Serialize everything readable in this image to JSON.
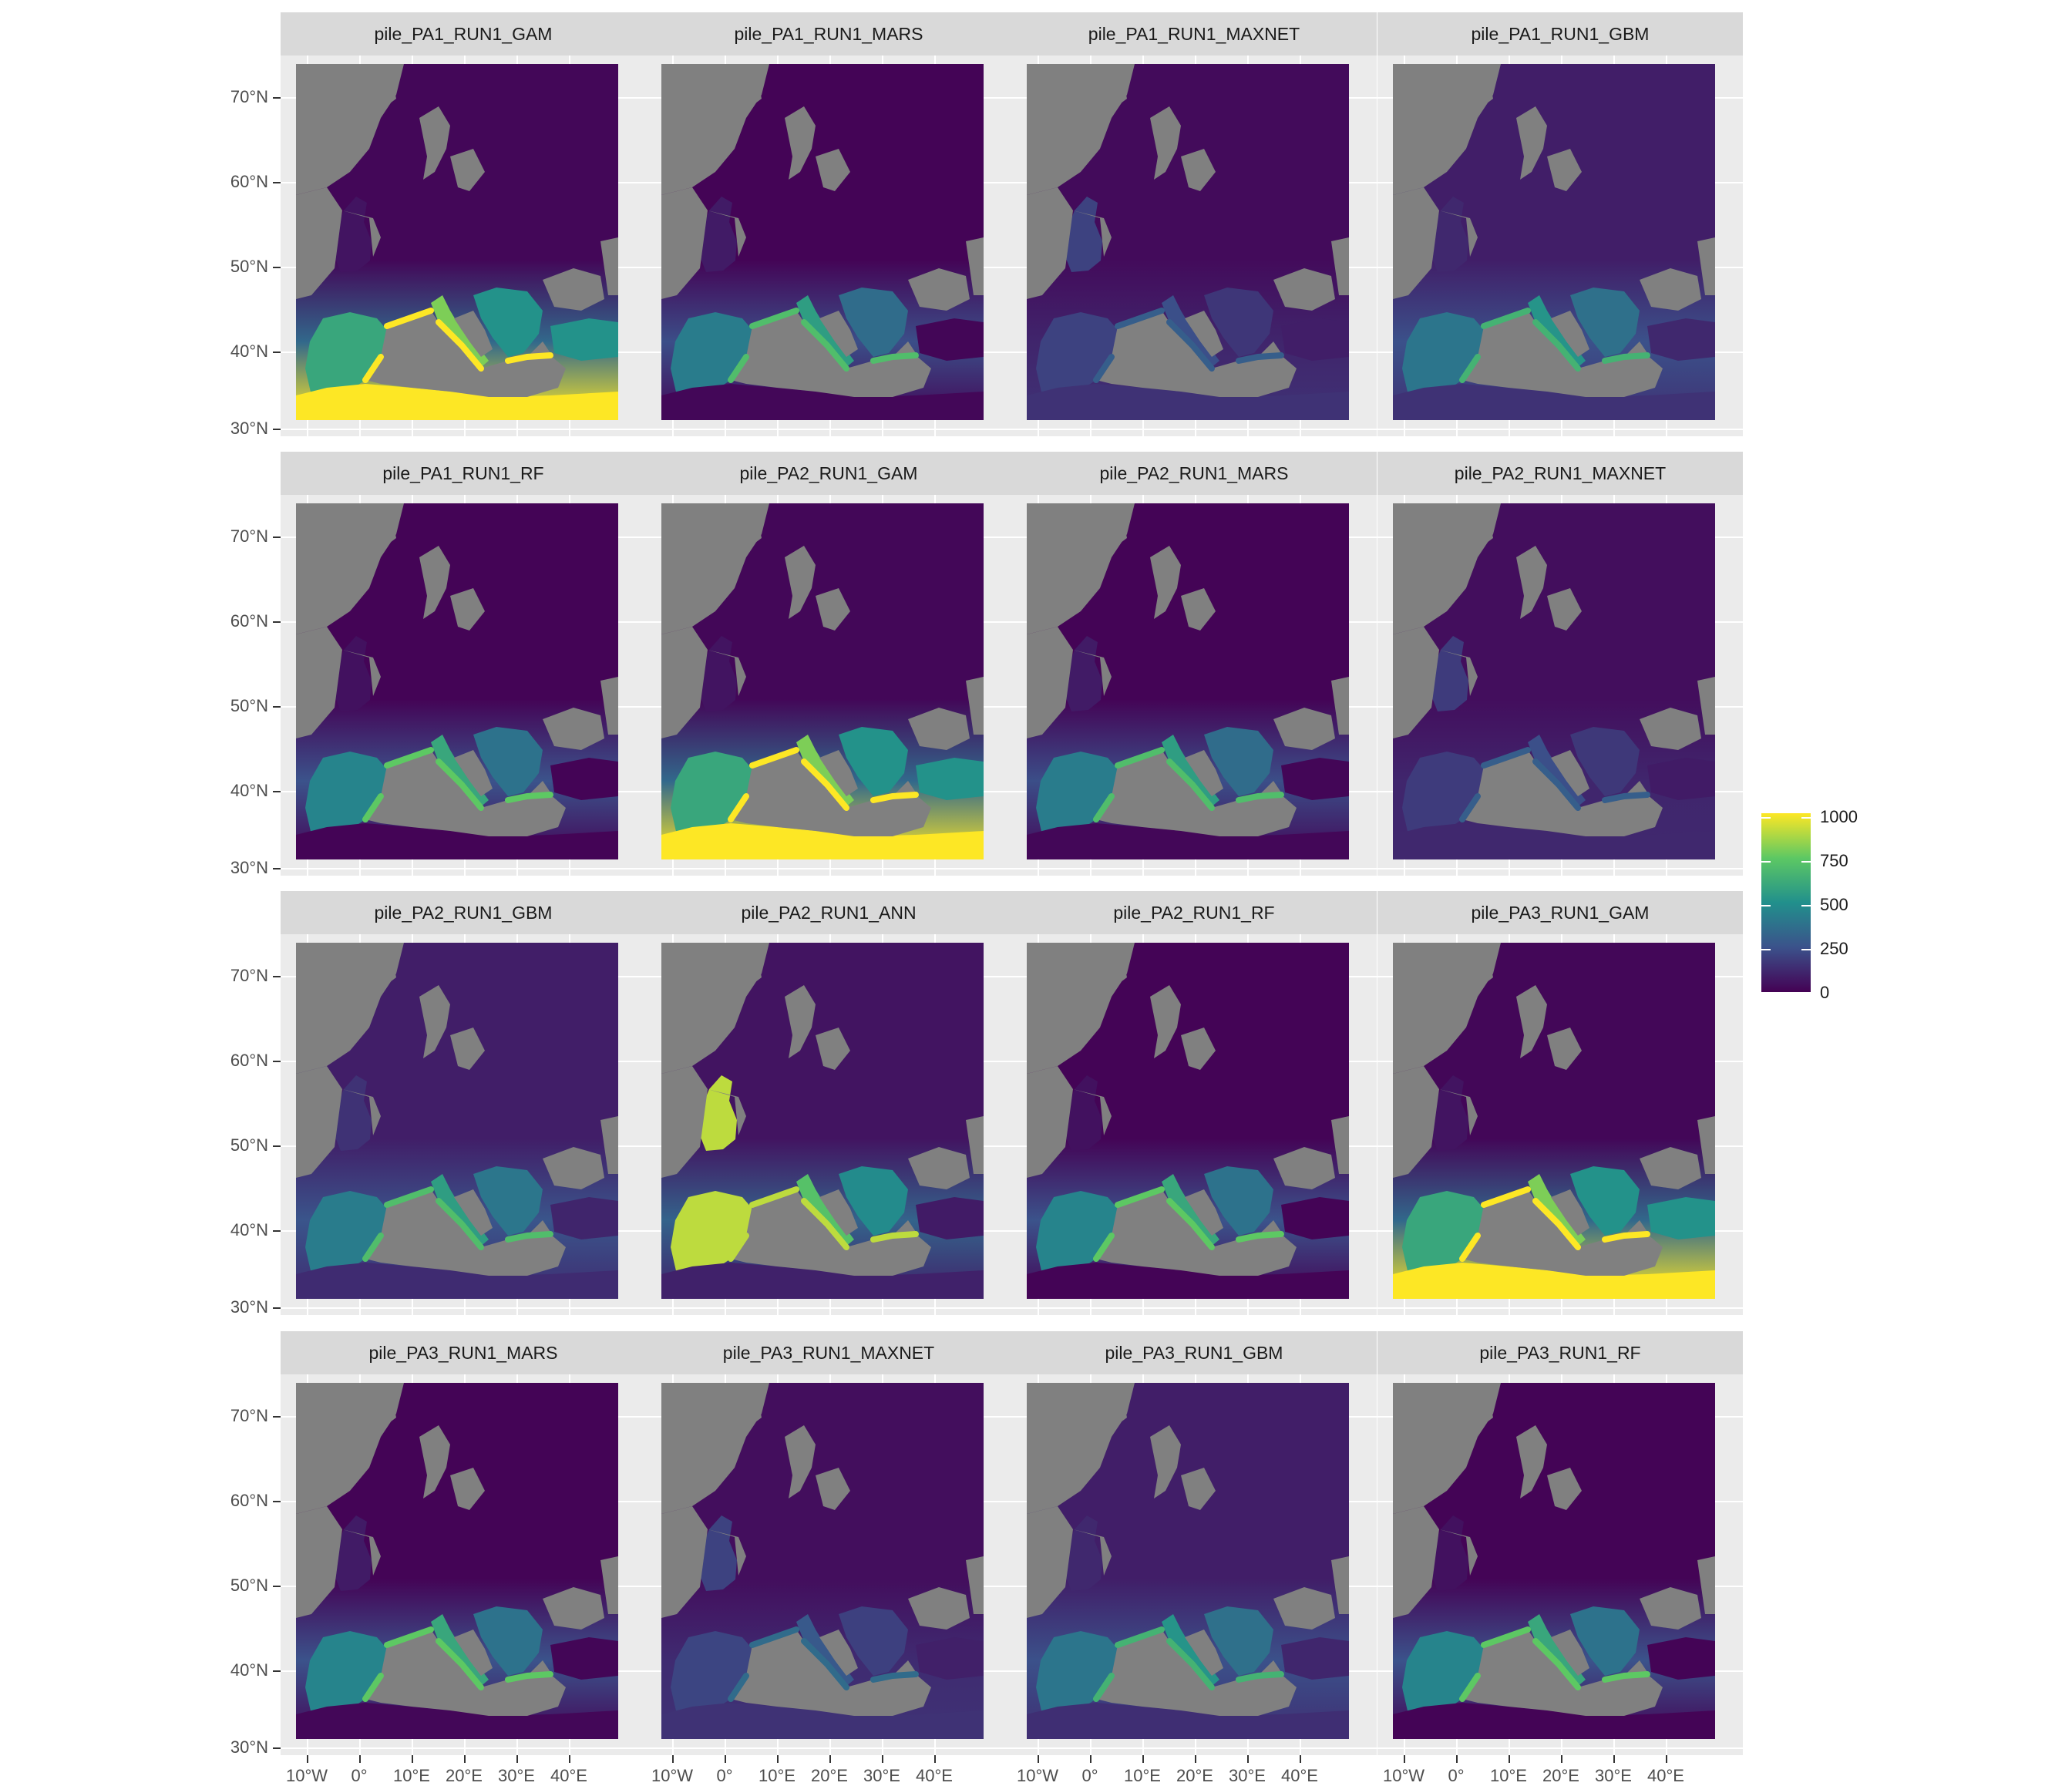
{
  "chart_data": {
    "type": "heatmap",
    "facet_layout": {
      "rows": 4,
      "cols": 4
    },
    "panels": [
      {
        "title": "pile_PA1_RUN1_GAM",
        "south_level": 1000,
        "coast_level": 1000,
        "north_level": 20,
        "west_level": 60
      },
      {
        "title": "pile_PA1_RUN1_MARS",
        "south_level": 20,
        "coast_level": 700,
        "north_level": 10,
        "west_level": 80
      },
      {
        "title": "pile_PA1_RUN1_MAXNET",
        "south_level": 150,
        "coast_level": 300,
        "north_level": 30,
        "west_level": 200
      },
      {
        "title": "pile_PA1_RUN1_GBM",
        "south_level": 150,
        "coast_level": 650,
        "north_level": 90,
        "west_level": 120
      },
      {
        "title": "pile_PA1_RUN1_RF",
        "south_level": 10,
        "coast_level": 750,
        "north_level": 10,
        "west_level": 50
      },
      {
        "title": "pile_PA2_RUN1_GAM",
        "south_level": 1000,
        "coast_level": 1000,
        "north_level": 20,
        "west_level": 60
      },
      {
        "title": "pile_PA2_RUN1_MARS",
        "south_level": 20,
        "coast_level": 700,
        "north_level": 10,
        "west_level": 80
      },
      {
        "title": "pile_PA2_RUN1_MAXNET",
        "south_level": 120,
        "coast_level": 300,
        "north_level": 40,
        "west_level": 180
      },
      {
        "title": "pile_PA2_RUN1_GBM",
        "south_level": 130,
        "coast_level": 700,
        "north_level": 90,
        "west_level": 150
      },
      {
        "title": "pile_PA2_RUN1_ANN",
        "south_level": 100,
        "coast_level": 900,
        "north_level": 60,
        "west_level": 900
      },
      {
        "title": "pile_PA2_RUN1_RF",
        "south_level": 10,
        "coast_level": 750,
        "north_level": 10,
        "west_level": 50
      },
      {
        "title": "pile_PA3_RUN1_GAM",
        "south_level": 1000,
        "coast_level": 1000,
        "north_level": 20,
        "west_level": 60
      },
      {
        "title": "pile_PA3_RUN1_MARS",
        "south_level": 20,
        "coast_level": 750,
        "north_level": 10,
        "west_level": 80
      },
      {
        "title": "pile_PA3_RUN1_MAXNET",
        "south_level": 150,
        "coast_level": 350,
        "north_level": 40,
        "west_level": 200
      },
      {
        "title": "pile_PA3_RUN1_GBM",
        "south_level": 140,
        "coast_level": 650,
        "north_level": 90,
        "west_level": 120
      },
      {
        "title": "pile_PA3_RUN1_RF",
        "south_level": 10,
        "coast_level": 750,
        "north_level": 10,
        "west_level": 50
      }
    ],
    "y_ticks": [
      "70°N",
      "60°N",
      "50°N",
      "40°N",
      "30°N"
    ],
    "x_ticks": [
      "10°W",
      "0°",
      "10°E",
      "20°E",
      "30°E",
      "40°E"
    ],
    "colorbar": {
      "ticks": [
        "1000",
        "750",
        "500",
        "250",
        "0"
      ],
      "range": [
        0,
        1000
      ],
      "colors": [
        "#440154",
        "#3b528b",
        "#21908c",
        "#5dc863",
        "#fde725"
      ]
    },
    "na_color": "#808080"
  }
}
